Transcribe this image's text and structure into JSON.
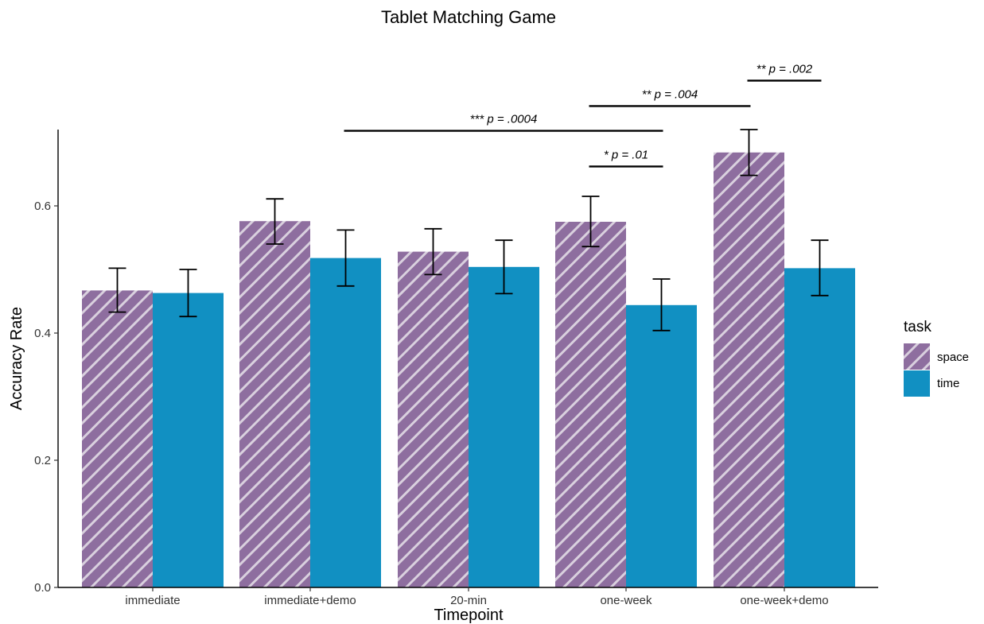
{
  "chart_data": {
    "type": "bar",
    "title": "Tablet Matching Game",
    "xlabel": "Timepoint",
    "ylabel": "Accuracy Rate",
    "ylim": [
      0,
      0.72
    ],
    "yticks": [
      0.0,
      0.2,
      0.4,
      0.6
    ],
    "ytick_labels": [
      "0.0",
      "0.2",
      "0.4",
      "0.6"
    ],
    "grid": false,
    "categories": [
      "immediate",
      "immediate+demo",
      "20-min",
      "one-week",
      "one-week+demo"
    ],
    "series": [
      {
        "name": "space",
        "color": "#8e6e9f",
        "pattern": "diagonal-stripes",
        "values": [
          0.467,
          0.576,
          0.528,
          0.575,
          0.684
        ],
        "error_low": [
          0.433,
          0.54,
          0.492,
          0.536,
          0.648
        ],
        "error_high": [
          0.502,
          0.611,
          0.564,
          0.615,
          0.72
        ]
      },
      {
        "name": "time",
        "color": "#1190c2",
        "pattern": "solid",
        "values": [
          0.463,
          0.518,
          0.504,
          0.444,
          0.502
        ],
        "error_low": [
          0.426,
          0.474,
          0.462,
          0.404,
          0.459
        ],
        "error_high": [
          0.5,
          0.562,
          0.546,
          0.485,
          0.546
        ]
      }
    ],
    "legend": {
      "title": "task",
      "placement": "right",
      "entries": [
        "space",
        "time"
      ]
    },
    "annotations": [
      {
        "text": "*** p = .0004",
        "from": {
          "category": "immediate+demo",
          "series": "time"
        },
        "to": {
          "category": "one-week",
          "series": "time"
        },
        "y": 0.718
      },
      {
        "text": "* p = .01",
        "from": {
          "category": "one-week",
          "series": "space"
        },
        "to": {
          "category": "one-week",
          "series": "time"
        },
        "y": 0.662
      },
      {
        "text": "** p = .004",
        "from": {
          "category": "one-week",
          "series": "space"
        },
        "to": {
          "category": "one-week+demo",
          "series": "space"
        },
        "y": 0.757
      },
      {
        "text": "** p = .002",
        "from": {
          "category": "one-week+demo",
          "series": "space"
        },
        "to": {
          "category": "one-week+demo",
          "series": "time"
        },
        "y": 0.797
      }
    ]
  }
}
